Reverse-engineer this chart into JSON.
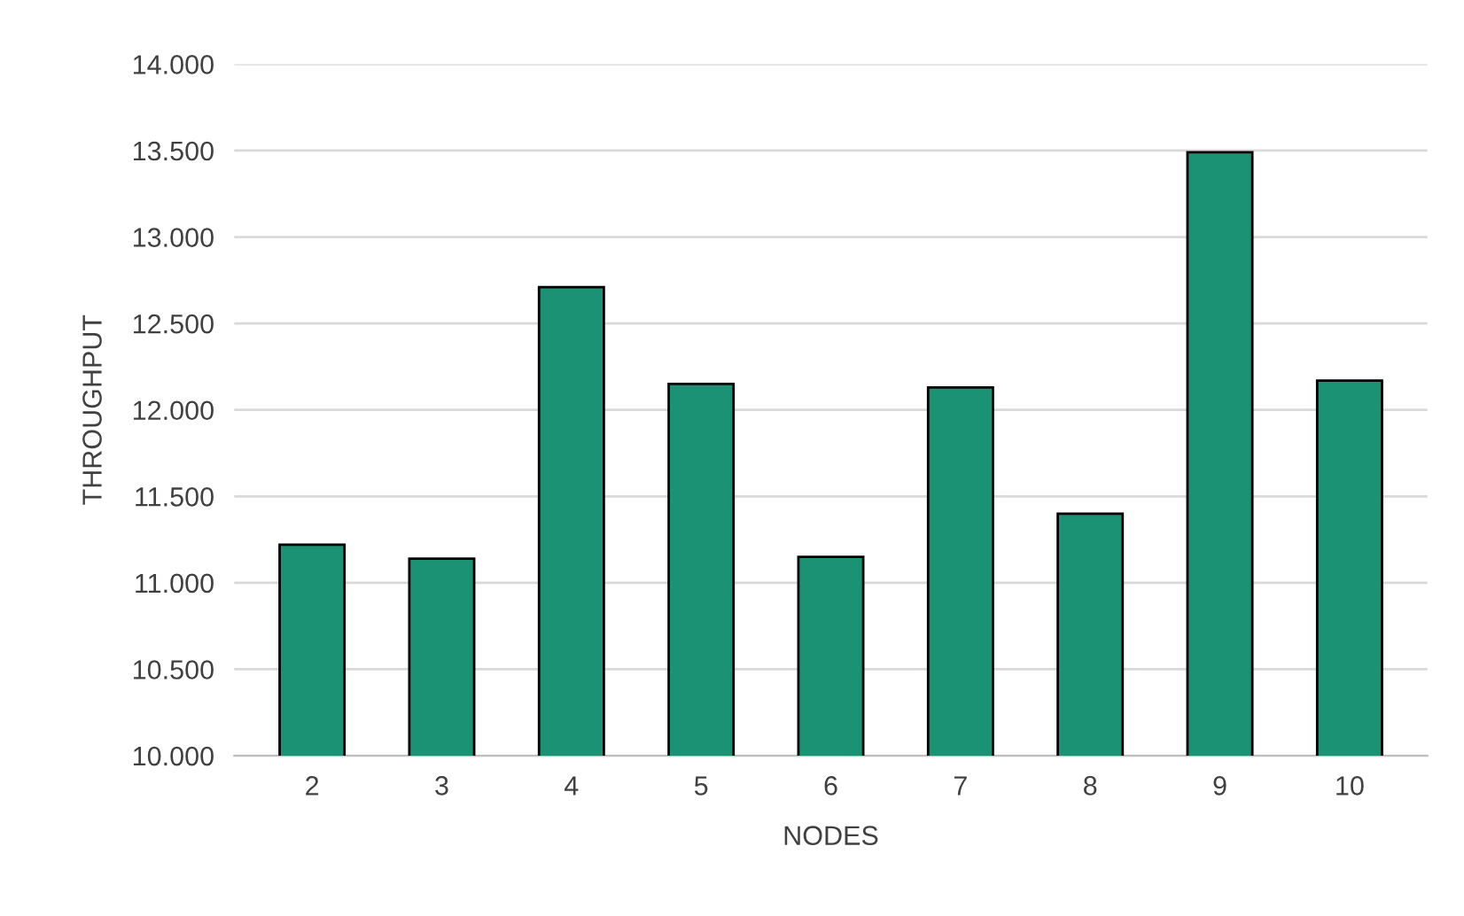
{
  "chart_data": {
    "type": "bar",
    "xlabel": "NODES",
    "ylabel": "THROUGHPUT",
    "categories": [
      "2",
      "3",
      "4",
      "5",
      "6",
      "7",
      "8",
      "9",
      "10"
    ],
    "values": [
      11.22,
      11.14,
      12.71,
      12.15,
      11.15,
      12.13,
      11.4,
      13.49,
      12.17
    ],
    "color": "#1a9273",
    "ylim": [
      10,
      14
    ],
    "yticks": [
      {
        "value": 10,
        "label": "10.000"
      },
      {
        "value": 10.5,
        "label": "10.500"
      },
      {
        "value": 11,
        "label": "11.000"
      },
      {
        "value": 11.5,
        "label": "11.500"
      },
      {
        "value": 12,
        "label": "12.000"
      },
      {
        "value": 12.5,
        "label": "12.500"
      },
      {
        "value": 13,
        "label": "13.000"
      },
      {
        "value": 13.5,
        "label": "13.500"
      },
      {
        "value": 14,
        "label": "14.000"
      }
    ],
    "grid": "y",
    "legend": false
  }
}
